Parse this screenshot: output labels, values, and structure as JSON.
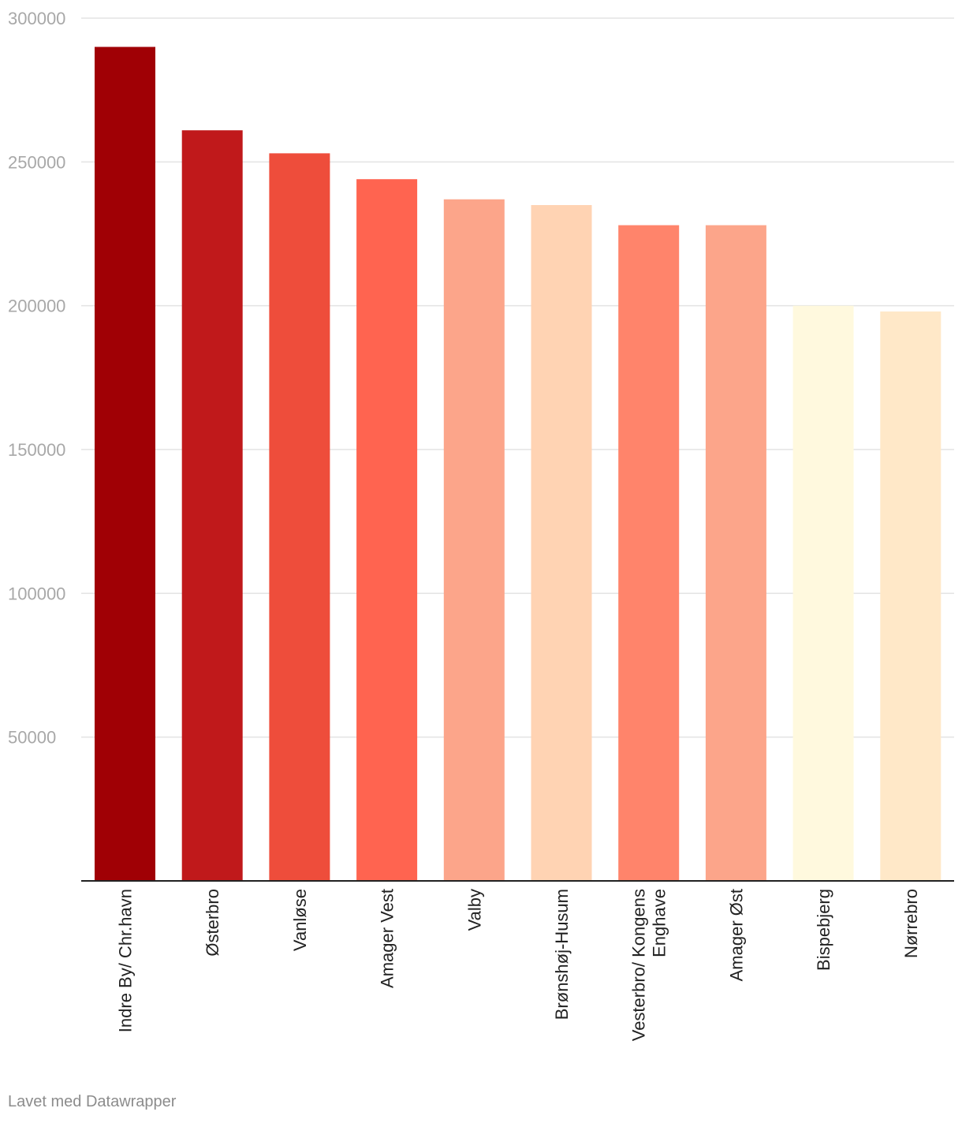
{
  "chart_data": {
    "type": "bar",
    "categories": [
      "Indre By/ Chr.havn",
      "Østerbro",
      "Vanløse",
      "Amager Vest",
      "Valby",
      "Brønshøj-Husum",
      "Vesterbro/ Kongens Enghave",
      "Amager Øst",
      "Bispebjerg",
      "Nørrebro"
    ],
    "category_lines": [
      [
        "Indre By/ Chr.havn"
      ],
      [
        "Østerbro"
      ],
      [
        "Vanløse"
      ],
      [
        "Amager Vest"
      ],
      [
        "Valby"
      ],
      [
        "Brønshøj-Husum"
      ],
      [
        "Vesterbro/ Kongens",
        "Enghave"
      ],
      [
        "Amager Øst"
      ],
      [
        "Bispebjerg"
      ],
      [
        "Nørrebro"
      ]
    ],
    "values": [
      290000,
      261000,
      253000,
      244000,
      237000,
      235000,
      228000,
      228000,
      200000,
      198000
    ],
    "colors": [
      "#a00005",
      "#c0191b",
      "#ee4d3b",
      "#ff6450",
      "#fca58a",
      "#ffd3b3",
      "#ff846b",
      "#fca58a",
      "#fff9de",
      "#ffe8c8"
    ],
    "ylim": [
      0,
      300000
    ],
    "yticks": [
      50000,
      100000,
      150000,
      200000,
      250000,
      300000
    ],
    "grid": true,
    "title": "",
    "xlabel": "",
    "ylabel": ""
  },
  "footer": {
    "credit": "Lavet med Datawrapper"
  }
}
